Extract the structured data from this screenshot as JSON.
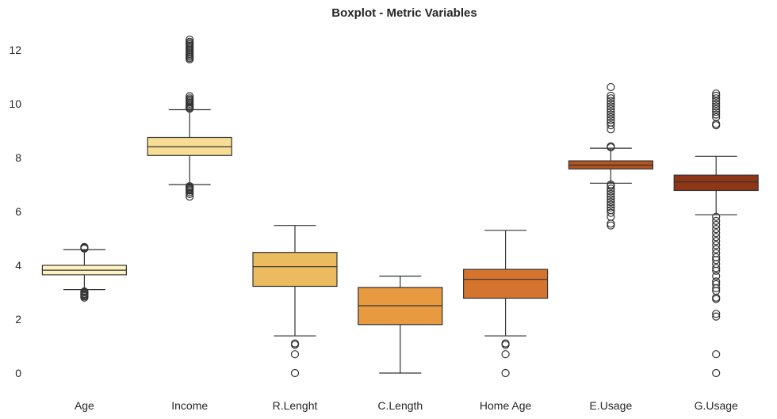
{
  "chart_data": {
    "type": "boxplot",
    "title": "Boxplot - Metric Variables",
    "xlabel": "",
    "ylabel": "",
    "ylim": [
      -0.6,
      13.0
    ],
    "yticks": [
      0,
      2,
      4,
      6,
      8,
      10,
      12
    ],
    "grid": false,
    "categories": [
      "Age",
      "Income",
      "R.Lenght",
      "C.Length",
      "Home Age",
      "E.Usage",
      "G.Usage"
    ],
    "colors": [
      "#fdf2c0",
      "#f8de94",
      "#ebbb5f",
      "#e79a40",
      "#d5742f",
      "#b3531f",
      "#8e3616"
    ],
    "boxes": [
      {
        "name": "Age",
        "q1": 3.65,
        "median": 3.82,
        "q3": 4.0,
        "whisker_low": 3.1,
        "whisker_high": 4.58,
        "outliers": [
          2.8,
          2.85,
          2.88,
          2.92,
          2.95,
          3.0,
          3.03,
          4.62,
          4.65,
          4.68
        ]
      },
      {
        "name": "Income",
        "q1": 8.08,
        "median": 8.4,
        "q3": 8.75,
        "whisker_low": 7.0,
        "whisker_high": 9.78,
        "outliers": [
          6.55,
          6.65,
          6.72,
          6.78,
          6.82,
          6.86,
          6.9,
          6.94,
          9.82,
          9.86,
          9.9,
          9.95,
          10.0,
          10.05,
          10.1,
          10.15,
          10.2,
          10.28,
          11.65,
          11.7,
          11.75,
          11.8,
          11.85,
          11.9,
          11.95,
          12.0,
          12.05,
          12.1,
          12.15,
          12.2,
          12.25,
          12.3,
          12.38
        ]
      },
      {
        "name": "R.Lenght",
        "q1": 3.22,
        "median": 3.95,
        "q3": 4.48,
        "whisker_low": 1.38,
        "whisker_high": 5.48,
        "outliers": [
          0.0,
          0.7,
          1.05,
          1.1
        ]
      },
      {
        "name": "C.Length",
        "q1": 1.8,
        "median": 2.5,
        "q3": 3.18,
        "whisker_low": 0.0,
        "whisker_high": 3.6,
        "outliers": []
      },
      {
        "name": "Home Age",
        "q1": 2.78,
        "median": 3.48,
        "q3": 3.85,
        "whisker_low": 1.38,
        "whisker_high": 5.3,
        "outliers": [
          0.0,
          0.7,
          1.05,
          1.1
        ]
      },
      {
        "name": "E.Usage",
        "q1": 7.58,
        "median": 7.72,
        "q3": 7.88,
        "whisker_low": 7.05,
        "whisker_high": 8.35,
        "outliers": [
          5.48,
          5.55,
          5.8,
          5.95,
          6.05,
          6.15,
          6.25,
          6.35,
          6.45,
          6.55,
          6.65,
          6.75,
          6.85,
          6.95,
          7.0,
          8.38,
          8.42,
          9.05,
          9.2,
          9.3,
          9.4,
          9.5,
          9.6,
          9.7,
          9.8,
          9.9,
          10.0,
          10.1,
          10.2,
          10.3,
          10.62
        ]
      },
      {
        "name": "G.Usage",
        "q1": 6.78,
        "median": 7.1,
        "q3": 7.35,
        "whisker_low": 5.88,
        "whisker_high": 8.05,
        "outliers": [
          0.0,
          0.7,
          2.1,
          2.2,
          2.75,
          2.8,
          3.05,
          3.15,
          3.3,
          3.4,
          3.6,
          3.8,
          3.9,
          4.05,
          4.2,
          4.3,
          4.45,
          4.6,
          4.75,
          4.9,
          5.05,
          5.2,
          5.35,
          5.5,
          5.65,
          5.8,
          9.2,
          9.25,
          9.5,
          9.6,
          9.7,
          9.8,
          9.9,
          10.0,
          10.1,
          10.2,
          10.3,
          10.38
        ]
      }
    ]
  }
}
